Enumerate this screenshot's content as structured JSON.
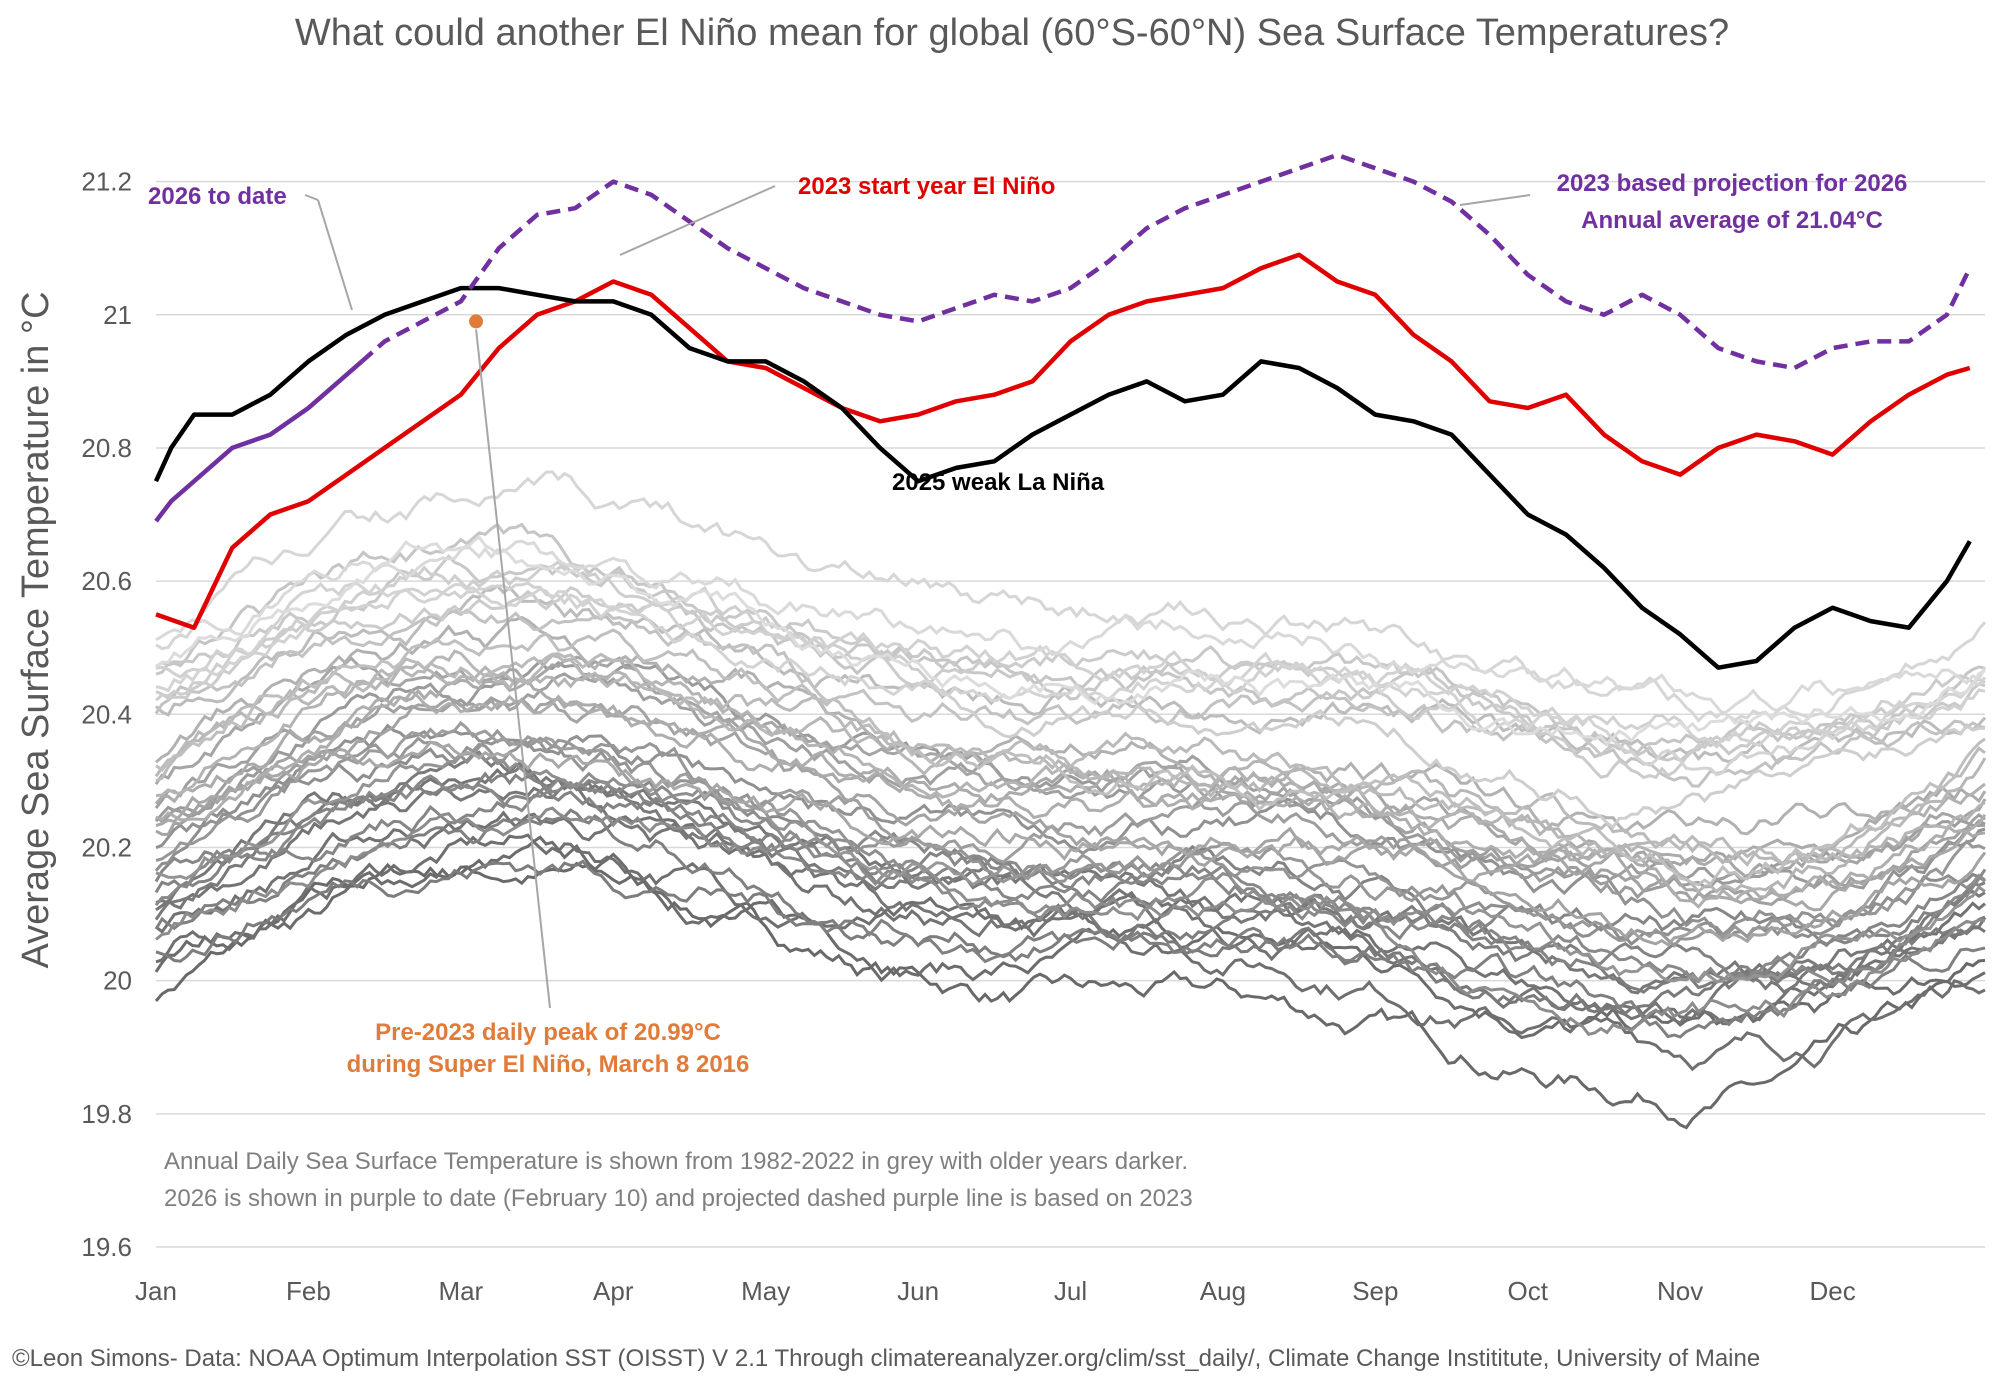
{
  "chart_data": {
    "type": "line",
    "title": "What could another El Niño mean for global (60°S-60°N) Sea Surface Temperatures?",
    "ylabel": "Average Sea Surface Temperature in °C",
    "xlabel": "",
    "ylim": [
      19.6,
      21.3
    ],
    "yticks": [
      19.6,
      19.8,
      20,
      20.2,
      20.4,
      20.6,
      20.8,
      21,
      21.2
    ],
    "yticks_text": [
      "19.6",
      "19.8",
      "20",
      "20.2",
      "20.4",
      "20.6",
      "20.8",
      "21",
      "21.2"
    ],
    "xlim": [
      0,
      12
    ],
    "categories": [
      "Jan",
      "Feb",
      "Mar",
      "Apr",
      "May",
      "Jun",
      "Jul",
      "Aug",
      "Sep",
      "Oct",
      "Nov",
      "Dec"
    ],
    "grid": true,
    "legend": "none",
    "colors": {
      "background_years": "#a6a6a6",
      "y2023": "#e00000",
      "y2025": "#000000",
      "y2026": "#7030a0",
      "peak": "#e07b39",
      "text": "#595959"
    },
    "series": [
      {
        "name": "2023 start year El Niño",
        "color": "#e00000",
        "style": "solid",
        "x": [
          0,
          0.25,
          0.5,
          0.75,
          1,
          1.5,
          2,
          2.25,
          2.5,
          2.75,
          3,
          3.25,
          3.5,
          3.75,
          4,
          4.25,
          4.5,
          4.75,
          5,
          5.25,
          5.5,
          5.75,
          6,
          6.25,
          6.5,
          6.75,
          7,
          7.25,
          7.5,
          7.75,
          8,
          8.25,
          8.5,
          8.75,
          9,
          9.25,
          9.5,
          9.75,
          10,
          10.25,
          10.5,
          10.75,
          11,
          11.25,
          11.5,
          11.75,
          11.9
        ],
        "y": [
          20.55,
          20.53,
          20.65,
          20.7,
          20.72,
          20.8,
          20.88,
          20.95,
          21.0,
          21.02,
          21.05,
          21.03,
          20.98,
          20.93,
          20.92,
          20.89,
          20.86,
          20.84,
          20.85,
          20.87,
          20.88,
          20.9,
          20.96,
          21.0,
          21.02,
          21.03,
          21.04,
          21.07,
          21.09,
          21.05,
          21.03,
          20.97,
          20.93,
          20.87,
          20.86,
          20.88,
          20.82,
          20.78,
          20.76,
          20.8,
          20.82,
          20.81,
          20.79,
          20.84,
          20.88,
          20.91,
          20.92
        ]
      },
      {
        "name": "2025 weak La Niña",
        "color": "#000000",
        "style": "solid",
        "x": [
          0,
          0.1,
          0.25,
          0.5,
          0.75,
          1,
          1.25,
          1.5,
          1.75,
          2,
          2.25,
          2.5,
          2.75,
          3,
          3.25,
          3.5,
          3.75,
          4,
          4.25,
          4.5,
          4.75,
          5,
          5.25,
          5.5,
          5.75,
          6,
          6.25,
          6.5,
          6.75,
          7,
          7.25,
          7.5,
          7.75,
          8,
          8.25,
          8.5,
          8.75,
          9,
          9.25,
          9.5,
          9.75,
          10,
          10.25,
          10.5,
          10.75,
          11,
          11.25,
          11.5,
          11.75,
          11.9
        ],
        "y": [
          20.75,
          20.8,
          20.85,
          20.85,
          20.88,
          20.93,
          20.97,
          21.0,
          21.02,
          21.04,
          21.04,
          21.03,
          21.02,
          21.02,
          21.0,
          20.95,
          20.93,
          20.93,
          20.9,
          20.86,
          20.8,
          20.75,
          20.77,
          20.78,
          20.82,
          20.85,
          20.88,
          20.9,
          20.87,
          20.88,
          20.93,
          20.92,
          20.89,
          20.85,
          20.84,
          20.82,
          20.76,
          20.7,
          20.67,
          20.62,
          20.56,
          20.52,
          20.47,
          20.48,
          20.53,
          20.56,
          20.54,
          20.53,
          20.6,
          20.66
        ]
      },
      {
        "name": "2026 to date",
        "color": "#7030a0",
        "style": "solid",
        "x": [
          0,
          0.1,
          0.25,
          0.5,
          0.75,
          1,
          1.2,
          1.35
        ],
        "y": [
          20.69,
          20.72,
          20.75,
          20.8,
          20.82,
          20.86,
          20.9,
          20.93
        ]
      },
      {
        "name": "2023 based projection for 2026",
        "color": "#7030a0",
        "style": "dashed",
        "x": [
          1.35,
          1.5,
          1.75,
          2,
          2.25,
          2.5,
          2.75,
          3,
          3.25,
          3.5,
          3.75,
          4,
          4.25,
          4.5,
          4.75,
          5,
          5.25,
          5.5,
          5.75,
          6,
          6.25,
          6.5,
          6.75,
          7,
          7.25,
          7.5,
          7.75,
          8,
          8.25,
          8.5,
          8.75,
          9,
          9.25,
          9.5,
          9.75,
          10,
          10.25,
          10.5,
          10.75,
          11,
          11.25,
          11.5,
          11.75,
          11.9
        ],
        "y": [
          20.93,
          20.96,
          20.99,
          21.02,
          21.1,
          21.15,
          21.16,
          21.2,
          21.18,
          21.14,
          21.1,
          21.07,
          21.04,
          21.02,
          21.0,
          20.99,
          21.01,
          21.03,
          21.02,
          21.04,
          21.08,
          21.13,
          21.16,
          21.18,
          21.2,
          21.22,
          21.24,
          21.22,
          21.2,
          21.17,
          21.12,
          21.06,
          21.02,
          21.0,
          21.03,
          21.0,
          20.95,
          20.93,
          20.92,
          20.95,
          20.96,
          20.96,
          21.0,
          21.07
        ]
      }
    ],
    "background_years_range": "1982-2022",
    "annotations": {
      "y2026_label": "2026 to date",
      "y2023_label": "2023 start year El Niño",
      "y2025_label": "2025 weak La Niña",
      "projection_line1": "2023 based projection for 2026",
      "projection_line2": "Annual average of 21.04°C",
      "peak_line1": "Pre-2023 daily peak of 20.99°C",
      "peak_line2": "during Super El Niño, March 8 2016",
      "peak_point": {
        "x": 2.1,
        "y": 20.99
      },
      "note_line1": "Annual Daily Sea Surface Temperature is shown from 1982-2022 in grey with older years darker.",
      "note_line2": "2026 is shown in purple to date (February 10) and projected dashed purple line is based on 2023"
    },
    "credit": "©Leon Simons- Data: NOAA Optimum Interpolation SST (OISST) V 2.1 Through climatereanalyzer.org/clim/sst_daily/, Climate Change Instititute, University of Maine"
  }
}
